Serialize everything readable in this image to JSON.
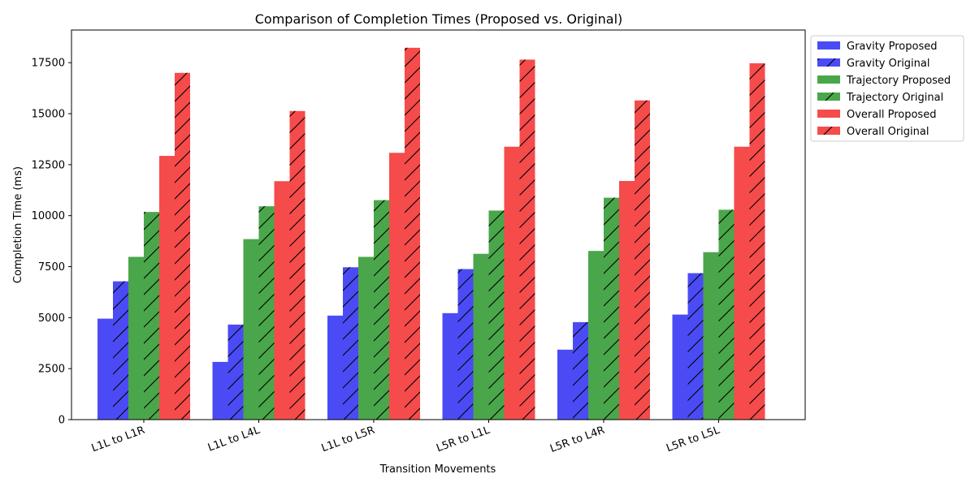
{
  "chart_data": {
    "type": "bar",
    "title": "Comparison of Completion Times (Proposed vs. Original)",
    "xlabel": "Transition Movements",
    "ylabel": "Completion Time (ms)",
    "categories": [
      "L1L to L1R",
      "L1L to L4L",
      "L1L to L5R",
      "L5R to L1L",
      "L5R to L4R",
      "L5R to L5L"
    ],
    "ylim": [
      0,
      19100
    ],
    "yticks": [
      0,
      2500,
      5000,
      7500,
      10000,
      12500,
      15000,
      17500
    ],
    "grid": false,
    "legend_position": "outside-top-right",
    "series": [
      {
        "name": "Gravity Proposed",
        "color": "#4b4bf5",
        "hatched": false,
        "values": [
          4950,
          2830,
          5100,
          5220,
          3430,
          5150
        ]
      },
      {
        "name": "Gravity Original",
        "color": "#4b4bf5",
        "hatched": true,
        "values": [
          6780,
          4660,
          7470,
          7380,
          4780,
          7180
        ]
      },
      {
        "name": "Trajectory Proposed",
        "color": "#4aa64a",
        "hatched": false,
        "values": [
          7980,
          8850,
          7980,
          8130,
          8270,
          8210
        ]
      },
      {
        "name": "Trajectory Original",
        "color": "#4aa64a",
        "hatched": true,
        "values": [
          10180,
          10460,
          10760,
          10250,
          10880,
          10290
        ]
      },
      {
        "name": "Overall Proposed",
        "color": "#f54b4b",
        "hatched": false,
        "values": [
          12930,
          11690,
          13080,
          13380,
          11700,
          13380
        ]
      },
      {
        "name": "Overall Original",
        "color": "#f54b4b",
        "hatched": true,
        "values": [
          17000,
          15130,
          18230,
          17650,
          15650,
          17470
        ]
      }
    ]
  }
}
